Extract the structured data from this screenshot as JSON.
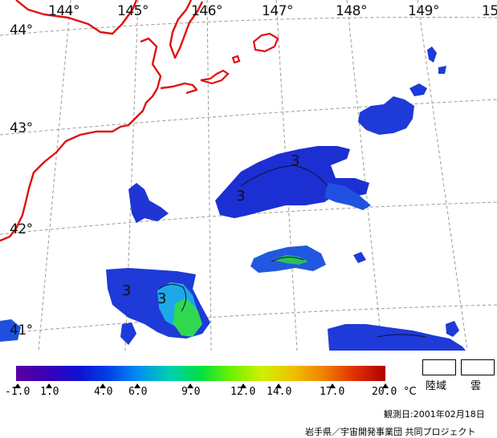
{
  "map": {
    "longitude_labels": [
      "144°",
      "145°",
      "146°",
      "147°",
      "148°",
      "149°",
      "15"
    ],
    "latitude_labels": [
      "44°",
      "43°",
      "42°",
      "41°"
    ],
    "isotherm_labels": [
      "3",
      "3",
      "3",
      "3"
    ],
    "coastline_color": "#e01010",
    "grid_color": "#9a9a9a"
  },
  "colorbar": {
    "colors": [
      "#5a00a0",
      "#3a00b8",
      "#1010d0",
      "#0040e8",
      "#0090f0",
      "#00d0b0",
      "#00e040",
      "#70f000",
      "#d0f000",
      "#f0c000",
      "#f08000",
      "#e03000",
      "#b00000"
    ],
    "tick_labels": [
      "-1.0",
      "1.0",
      "4.0",
      "6.0",
      "9.0",
      "12.0",
      "14.0",
      "17.0",
      "20.0"
    ],
    "unit": "°C"
  },
  "legend": {
    "land_label": "陸域",
    "cloud_label": "雲"
  },
  "footer": {
    "observation_date": "観測日:2001年02月18日",
    "credit": "岩手県／宇宙開発事業団 共同プロジェクト"
  }
}
